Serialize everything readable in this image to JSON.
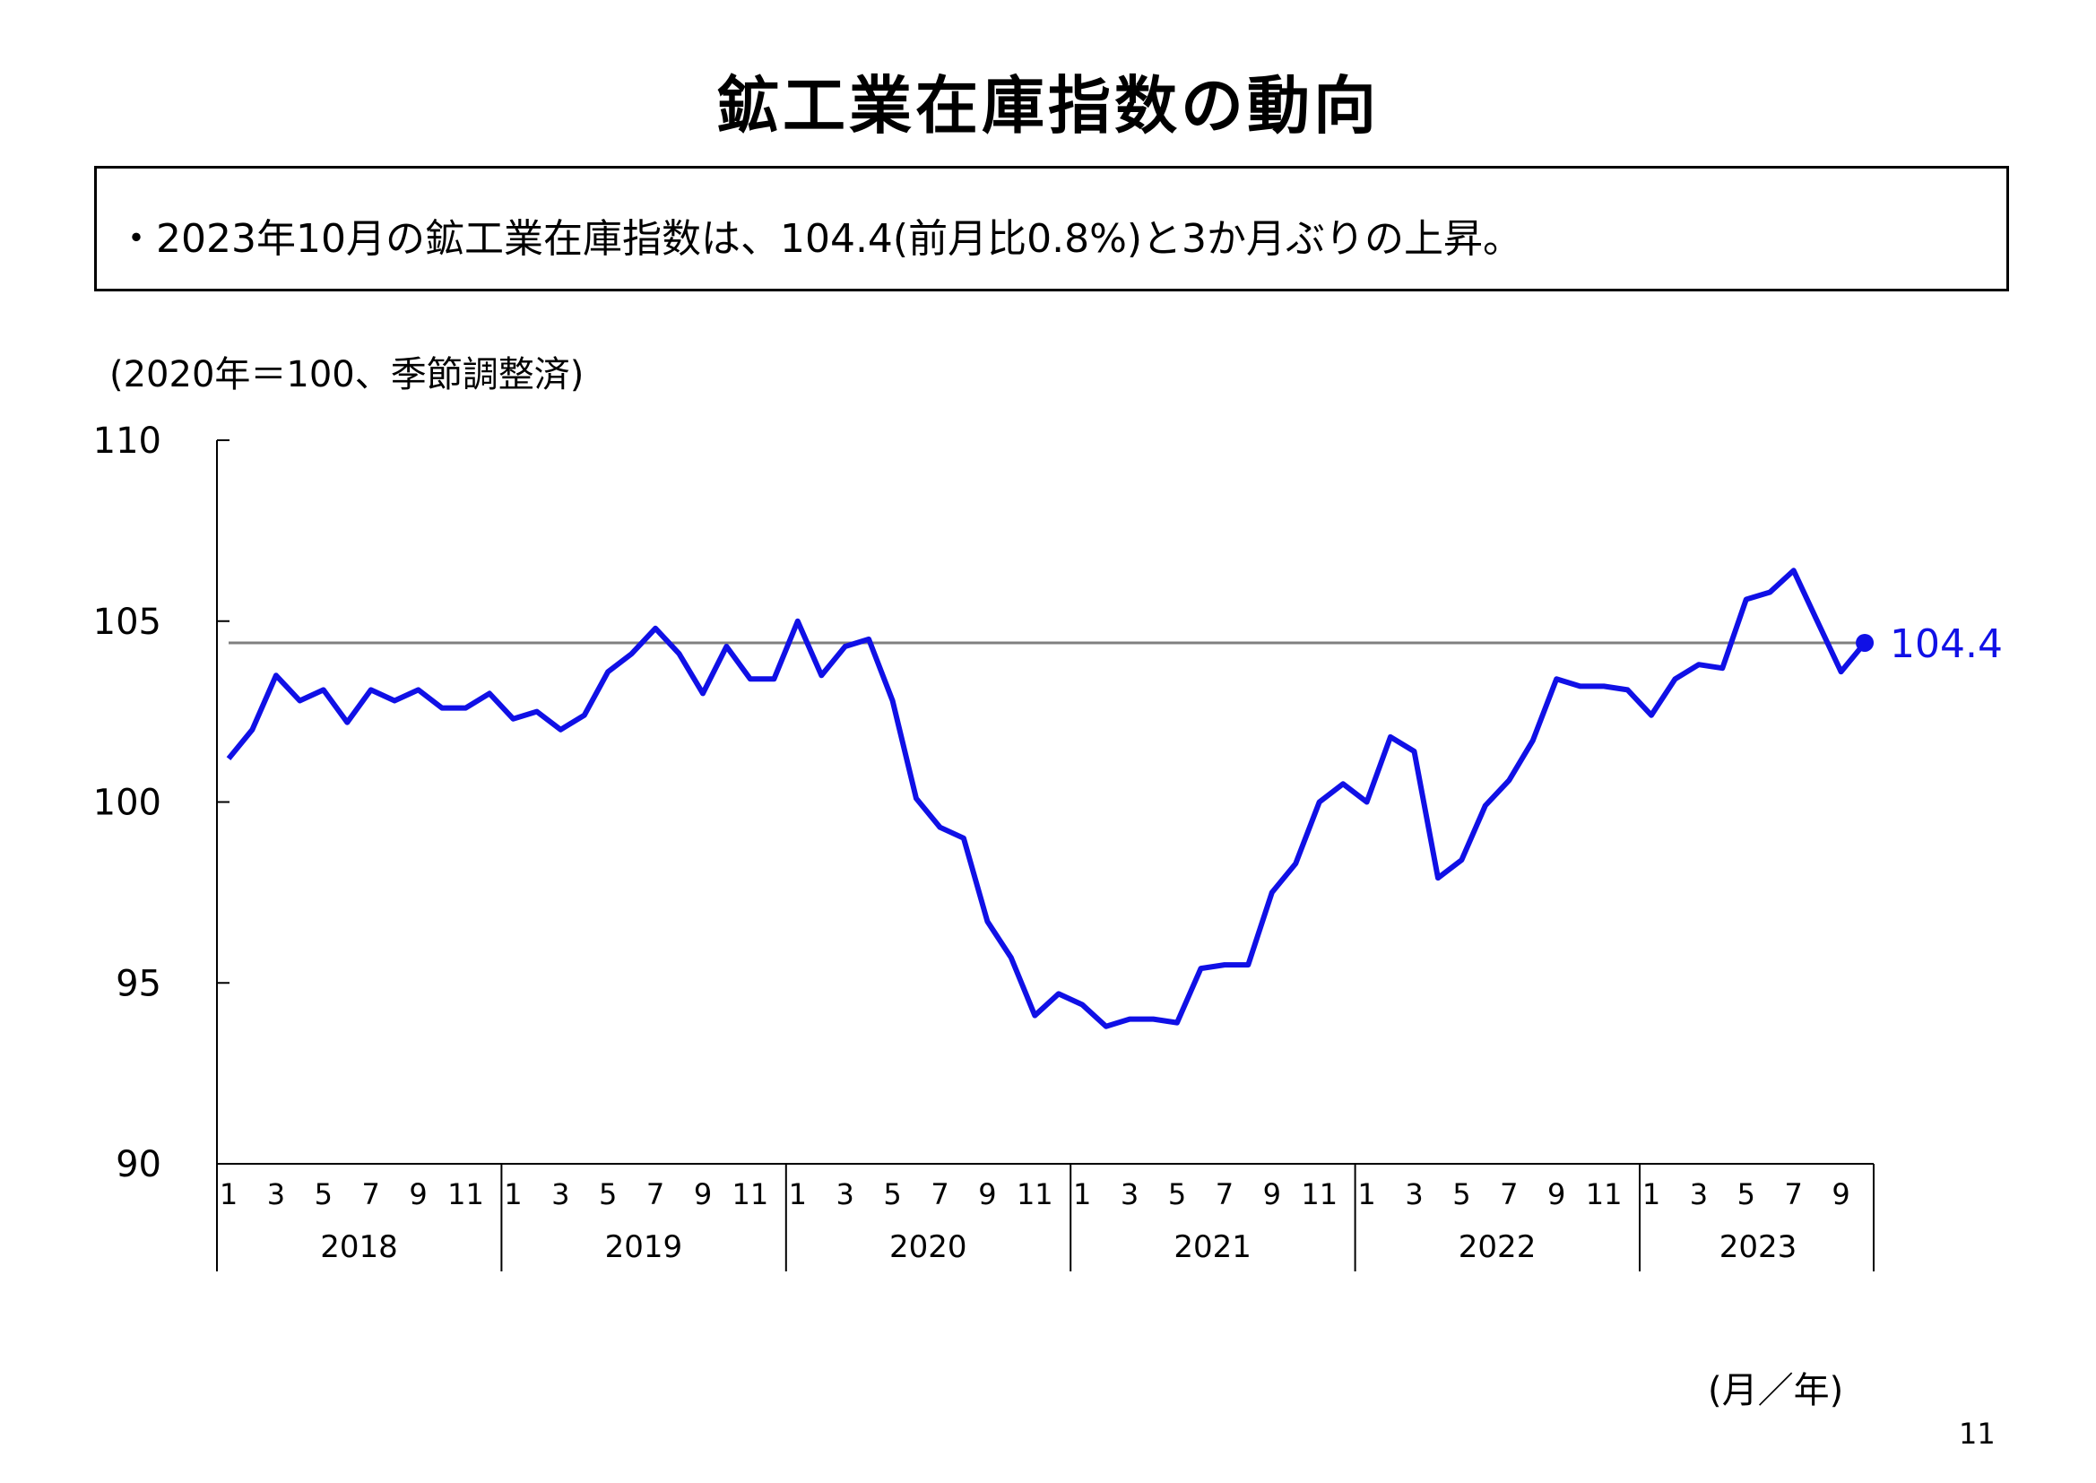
{
  "title": "鉱工業在庫指数の動向",
  "summary": "・2023年10月の鉱工業在庫指数は、104.4(前月比0.8%)と3か月ぶりの上昇。",
  "unit_note": "(2020年＝100、季節調整済)",
  "axis_unit": "(月／年)",
  "page_number": "11",
  "colors": {
    "series": "#1010e6",
    "reference_line": "#808080",
    "axis": "#000000"
  },
  "chart_data": {
    "type": "line",
    "x": [
      "2018-01",
      "2018-02",
      "2018-03",
      "2018-04",
      "2018-05",
      "2018-06",
      "2018-07",
      "2018-08",
      "2018-09",
      "2018-10",
      "2018-11",
      "2018-12",
      "2019-01",
      "2019-02",
      "2019-03",
      "2019-04",
      "2019-05",
      "2019-06",
      "2019-07",
      "2019-08",
      "2019-09",
      "2019-10",
      "2019-11",
      "2019-12",
      "2020-01",
      "2020-02",
      "2020-03",
      "2020-04",
      "2020-05",
      "2020-06",
      "2020-07",
      "2020-08",
      "2020-09",
      "2020-10",
      "2020-11",
      "2020-12",
      "2021-01",
      "2021-02",
      "2021-03",
      "2021-04",
      "2021-05",
      "2021-06",
      "2021-07",
      "2021-08",
      "2021-09",
      "2021-10",
      "2021-11",
      "2021-12",
      "2022-01",
      "2022-02",
      "2022-03",
      "2022-04",
      "2022-05",
      "2022-06",
      "2022-07",
      "2022-08",
      "2022-09",
      "2022-10",
      "2022-11",
      "2022-12",
      "2023-01",
      "2023-02",
      "2023-03",
      "2023-04",
      "2023-05",
      "2023-06",
      "2023-07",
      "2023-08",
      "2023-09",
      "2023-10"
    ],
    "series": [
      {
        "name": "",
        "values": [
          101.2,
          102.0,
          103.5,
          102.8,
          103.1,
          102.2,
          103.1,
          102.8,
          103.1,
          102.6,
          102.6,
          103.0,
          102.3,
          102.5,
          102.0,
          102.4,
          103.6,
          104.1,
          104.8,
          104.1,
          103.0,
          104.3,
          103.4,
          103.4,
          105.0,
          103.5,
          104.3,
          104.5,
          102.8,
          100.1,
          99.3,
          99.0,
          96.7,
          95.7,
          94.1,
          94.7,
          94.4,
          93.8,
          94.0,
          94.0,
          93.9,
          95.4,
          95.5,
          95.5,
          97.5,
          98.3,
          100.0,
          100.5,
          100.0,
          101.8,
          101.4,
          97.9,
          98.4,
          99.9,
          100.6,
          101.7,
          103.4,
          103.2,
          103.2,
          103.1,
          102.4,
          103.4,
          103.8,
          103.7,
          105.6,
          105.8,
          106.4,
          105.0,
          103.6,
          104.4
        ]
      }
    ],
    "month_ticks": [
      "1",
      "3",
      "5",
      "7",
      "9",
      "11"
    ],
    "year_labels": [
      "2018",
      "2019",
      "2020",
      "2021",
      "2022",
      "2023"
    ],
    "y_ticks": [
      "110",
      "105",
      "100",
      "95",
      "90"
    ],
    "ylim": [
      90,
      110
    ],
    "reference_line": 104.4,
    "last_value_label": "104.4",
    "grid": false
  }
}
